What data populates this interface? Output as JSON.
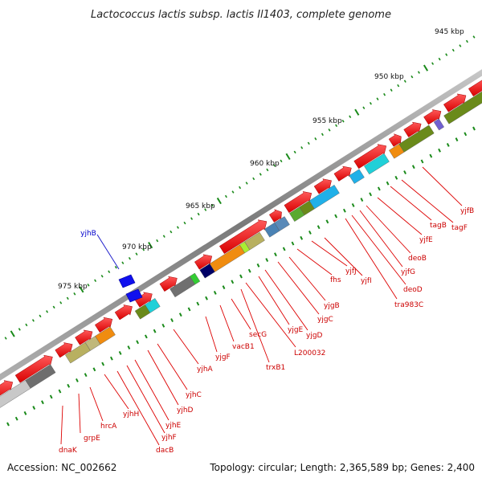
{
  "title": "Lactococcus lactis subsp. lactis Il1403, complete genome",
  "footer": {
    "accession": "Accession: NC_002662",
    "summary": "Topology: circular; Length: 2,365,589 bp; Genes: 2,400"
  },
  "ruler": {
    "labels": [
      "945 kbp",
      "950 kbp",
      "955 kbp",
      "960 kbp",
      "965 kbp",
      "970 kbp",
      "975 kbp"
    ]
  },
  "genes": {
    "red": [
      "dnaK",
      "grpE",
      "hrcA",
      "yjhH",
      "dacB",
      "yjhF",
      "yjhE",
      "yjhD",
      "yjhC",
      "yjhA",
      "yjgF",
      "vacB1",
      "secG",
      "trxB1",
      "L200032",
      "yjgE",
      "yjgD",
      "yjgC",
      "yjgB",
      "fhs",
      "yjfI",
      "yjfJ",
      "tra983C",
      "deoD",
      "yjfG",
      "deoB",
      "yjfE",
      "tagF",
      "tagB",
      "yjfB"
    ],
    "blue": [
      "yjhB"
    ]
  },
  "colors": {
    "backbone": "#8a8a8a",
    "arrow": "#ee0000",
    "label_line": "#dd0000",
    "label_text": "#cc0000",
    "blue_label": "#0000cc",
    "tick": "#1a8a1a"
  }
}
